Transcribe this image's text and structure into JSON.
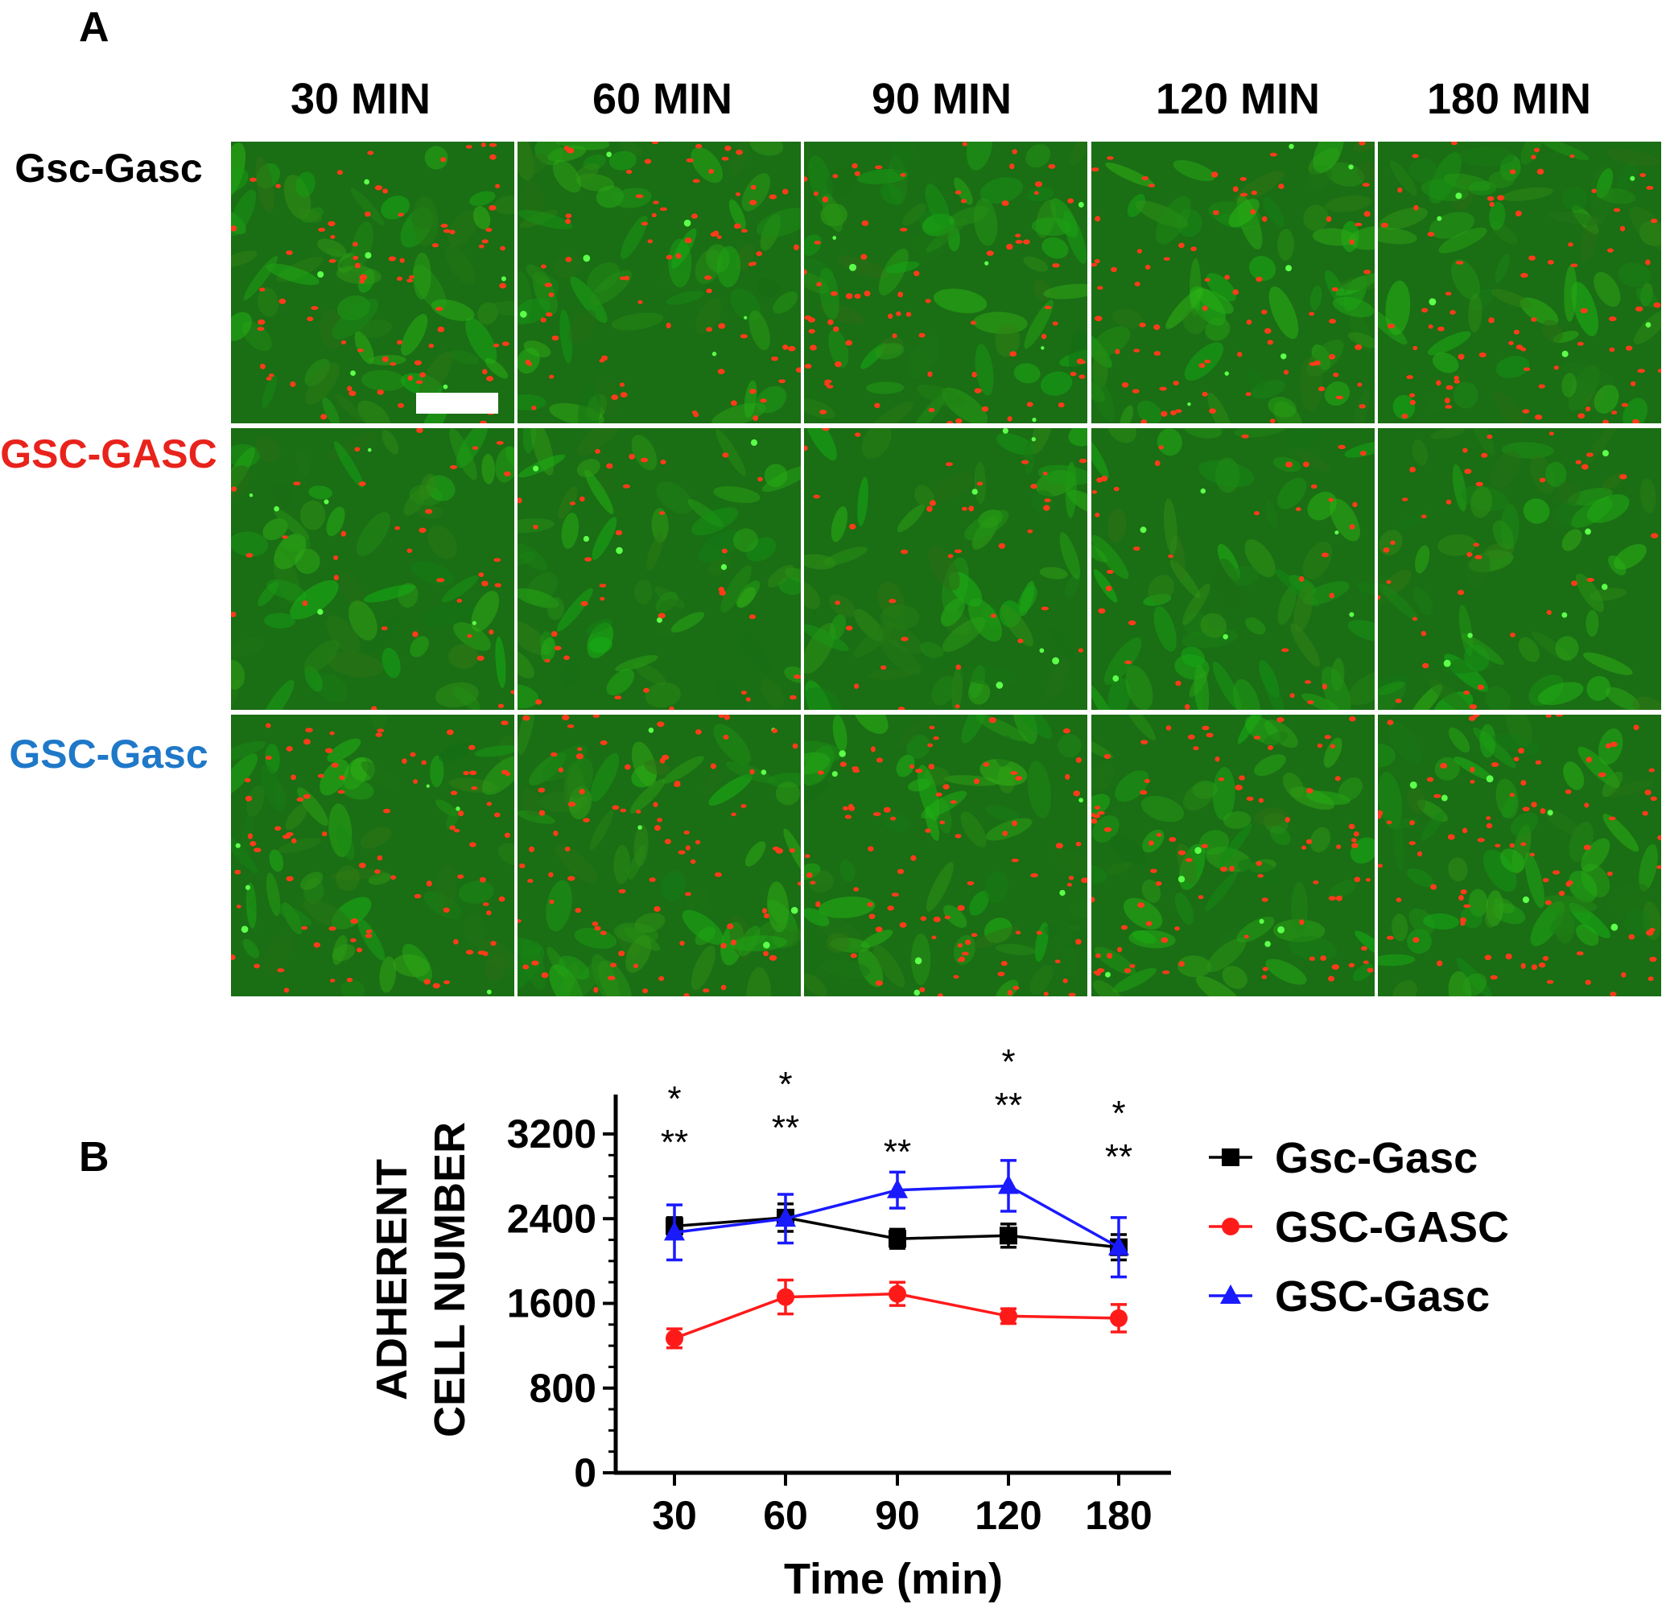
{
  "panel_a": {
    "letter": "A",
    "columns": [
      "30 MIN",
      "60 MIN",
      "90 MIN",
      "120 MIN",
      "180 MIN"
    ],
    "rows": [
      {
        "label": "Gsc-Gasc",
        "color": "#000000",
        "red_density": 75
      },
      {
        "label": "GSC-GASC",
        "color": "#e8231c",
        "red_density": 35
      },
      {
        "label": "GSC-Gasc",
        "color": "#1f78c8",
        "red_density": 85
      }
    ]
  },
  "panel_b": {
    "letter": "B"
  },
  "chart_data": {
    "type": "line",
    "x": [
      30,
      60,
      90,
      120,
      180
    ],
    "x_tick_labels": [
      "30",
      "60",
      "90",
      "120",
      "180"
    ],
    "xlabel": "Time (min)",
    "ylabel_lines": [
      "ADHERENT",
      "CELL NUMBER"
    ],
    "ylim": [
      0,
      3200
    ],
    "yticks": [
      0,
      800,
      1600,
      2400,
      3200
    ],
    "legend_position": "right",
    "series": [
      {
        "name": "Gsc-Gasc",
        "color": "#000000",
        "marker": "square",
        "values": [
          2330,
          2410,
          2210,
          2240,
          2130
        ],
        "errors": [
          80,
          130,
          90,
          110,
          120
        ]
      },
      {
        "name": "GSC-GASC",
        "color": "#ff1a1a",
        "marker": "circle",
        "values": [
          1270,
          1660,
          1690,
          1480,
          1460
        ],
        "errors": [
          90,
          160,
          110,
          70,
          130
        ]
      },
      {
        "name": "GSC-Gasc",
        "color": "#1a1aff",
        "marker": "triangle",
        "values": [
          2270,
          2400,
          2670,
          2710,
          2130
        ],
        "errors": [
          260,
          230,
          170,
          240,
          280
        ]
      }
    ],
    "annotations": [
      {
        "x": 30,
        "top": "*",
        "bottom": "**"
      },
      {
        "x": 60,
        "top": "*",
        "bottom": "**"
      },
      {
        "x": 90,
        "top": "",
        "bottom": "**"
      },
      {
        "x": 120,
        "top": "*",
        "bottom": "**"
      },
      {
        "x": 180,
        "top": "*",
        "bottom": "**"
      }
    ]
  }
}
